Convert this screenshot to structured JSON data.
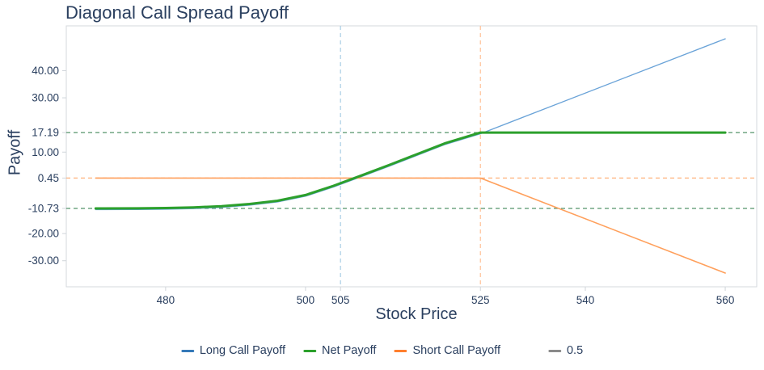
{
  "chart_data": {
    "type": "line",
    "title": "Diagonal Call Spread Payoff",
    "xlabel": "Stock Price",
    "ylabel": "Payoff",
    "xlim": [
      465.8,
      564.5
    ],
    "ylim": [
      -39.6,
      56.5
    ],
    "grid": false,
    "background": "#ffffff",
    "text_color": "#2a3f5f",
    "border_color": "#d5d9dd",
    "x_ticks": [
      {
        "value": 480,
        "label": "480"
      },
      {
        "value": 500,
        "label": "500"
      },
      {
        "value": 505,
        "label": "505"
      },
      {
        "value": 525,
        "label": "525"
      },
      {
        "value": 540,
        "label": "540"
      },
      {
        "value": 560,
        "label": "560"
      }
    ],
    "y_ticks": [
      {
        "value": 40,
        "label": "40.00"
      },
      {
        "value": 30,
        "label": "30.00"
      },
      {
        "value": 17.19,
        "label": "17.19"
      },
      {
        "value": 10,
        "label": "10.00"
      },
      {
        "value": 0.45,
        "label": "0.45"
      },
      {
        "value": -10.73,
        "label": "-10.73"
      },
      {
        "value": -20,
        "label": "-20.00"
      },
      {
        "value": -30,
        "label": "-30.00"
      }
    ],
    "reference_lines": [
      {
        "orientation": "h",
        "value": 17.19,
        "color": "#55946a",
        "dash": "5 4",
        "width": 1.3,
        "name": "max-profit-line"
      },
      {
        "orientation": "h",
        "value": 0.45,
        "color": "#ffb27c",
        "dash": "5 4",
        "width": 1.2,
        "name": "short-premium-line"
      },
      {
        "orientation": "h",
        "value": -10.73,
        "color": "#55946a",
        "dash": "5 4",
        "width": 1.3,
        "name": "max-loss-line"
      },
      {
        "orientation": "v",
        "value": 505,
        "color": "#a8cde4",
        "dash": "5 4",
        "width": 1.2,
        "name": "long-strike-line"
      },
      {
        "orientation": "v",
        "value": 525,
        "color": "#ffc096",
        "dash": "5 4",
        "width": 1.2,
        "name": "short-strike-line"
      }
    ],
    "series": [
      {
        "name": "Long Call Payoff",
        "color": "#6aa3d8",
        "width": 1.3,
        "x": [
          470,
          476,
          480,
          484,
          488,
          492,
          496,
          500,
          504,
          508,
          512,
          516,
          520,
          525,
          560
        ],
        "y": [
          -11.18,
          -11.15,
          -11.05,
          -10.8,
          -10.35,
          -9.55,
          -8.35,
          -6.25,
          -2.85,
          0.95,
          4.85,
          8.85,
          12.85,
          16.74,
          51.75
        ]
      },
      {
        "name": "Short Call Payoff",
        "color": "#ffa05c",
        "width": 1.6,
        "x": [
          470,
          525,
          560
        ],
        "y": [
          0.45,
          0.45,
          -34.55
        ]
      },
      {
        "name": "Net Payoff",
        "color": "#2ca02c",
        "width": 3,
        "x": [
          470,
          476,
          480,
          484,
          488,
          492,
          496,
          500,
          504,
          508,
          512,
          516,
          520,
          525,
          560
        ],
        "y": [
          -10.73,
          -10.7,
          -10.6,
          -10.35,
          -9.9,
          -9.1,
          -7.9,
          -5.8,
          -2.4,
          1.4,
          5.3,
          9.3,
          13.3,
          17.19,
          17.19
        ]
      }
    ],
    "legend": {
      "position": "bottom-center",
      "items": [
        {
          "label": "Long Call Payoff",
          "color": "#3579b8",
          "group": 0
        },
        {
          "label": "Net Payoff",
          "color": "#2ca02c",
          "group": 0
        },
        {
          "label": "Short Call Payoff",
          "color": "#ff7f2e",
          "group": 0
        },
        {
          "label": "0.5",
          "color": "#8a8a8a",
          "group": 1
        }
      ]
    }
  }
}
